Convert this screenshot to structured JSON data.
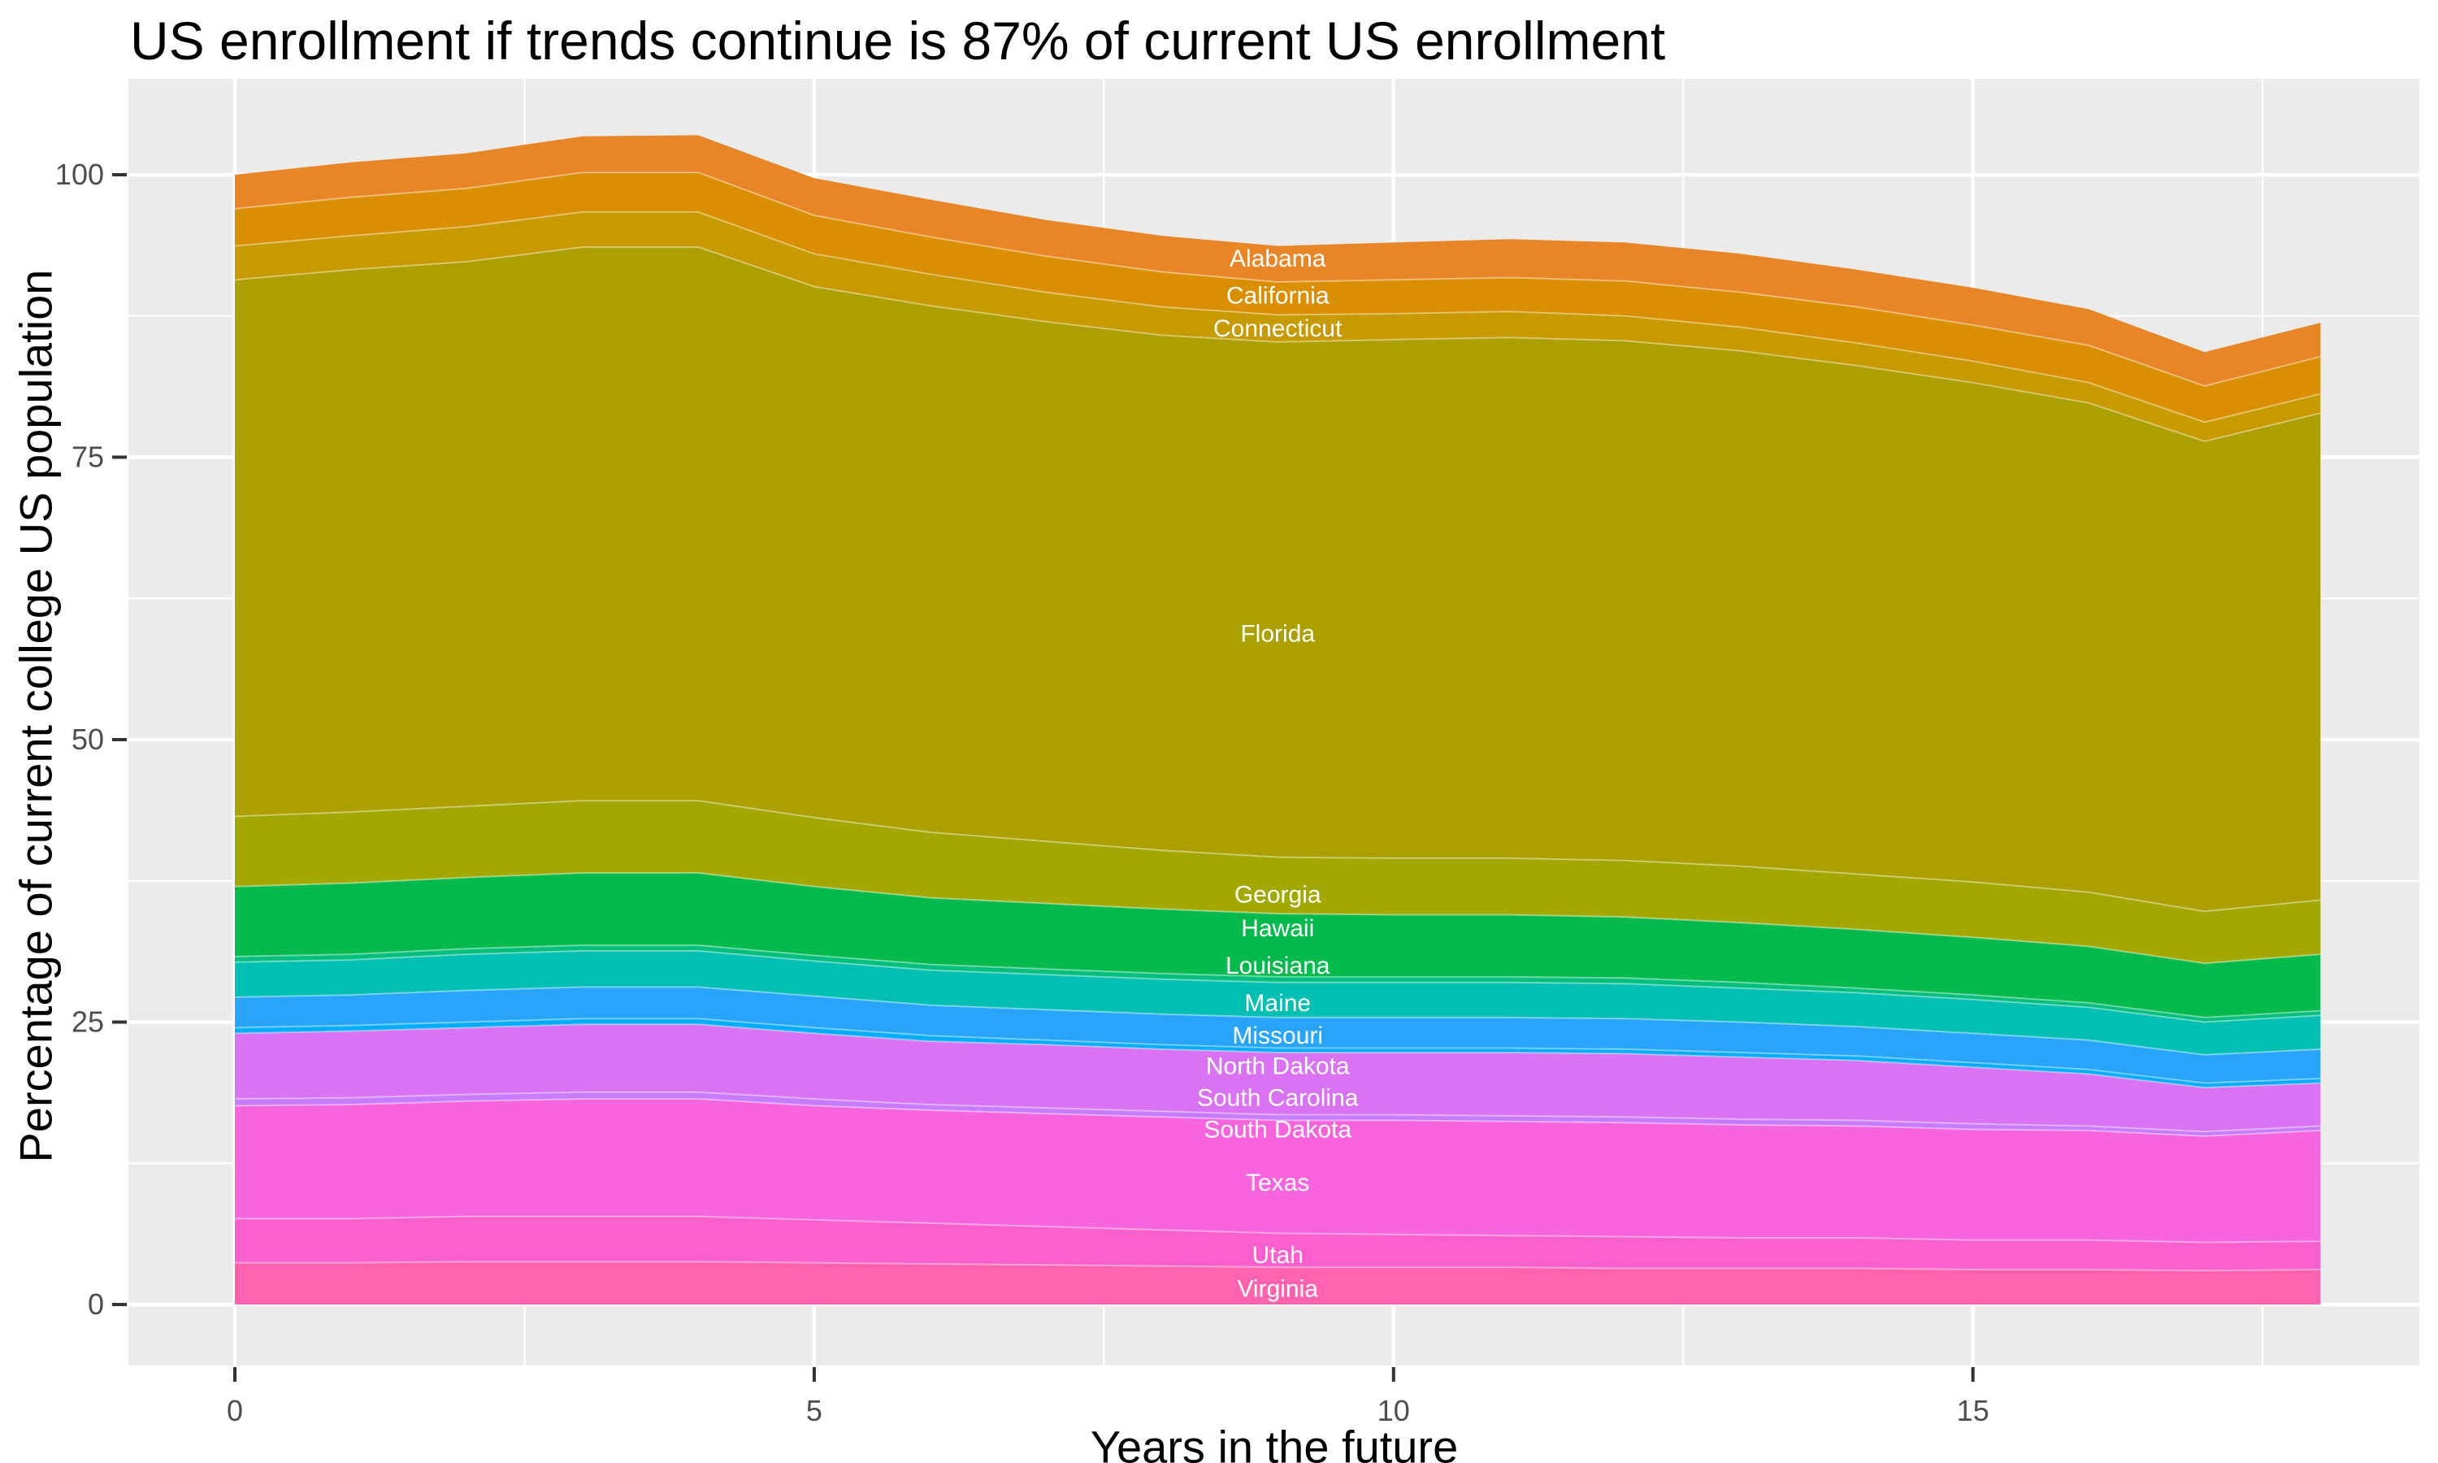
{
  "title": "US enrollment if trends continue is 87% of current US enrollment",
  "colors": {
    "panel_background": "#EBEBEB",
    "grid": "#FFFFFF",
    "tick_text": "#4D4D4D",
    "axis_text": "#000000",
    "tick_mark": "#333333",
    "state_label_text": "#FFFFFF"
  },
  "chart_data": {
    "type": "area",
    "stacked": true,
    "title": "US enrollment if trends continue is 87% of current US enrollment",
    "xlabel": "Years in the future",
    "ylabel": "Percentage of current college US population",
    "x": [
      0,
      1,
      2,
      3,
      4,
      5,
      6,
      7,
      8,
      9,
      10,
      11,
      12,
      13,
      14,
      15,
      16,
      17,
      18
    ],
    "x_ticks": [
      0,
      5,
      10,
      15
    ],
    "x_minor_ticks": [
      2.5,
      7.5,
      12.5,
      17.5
    ],
    "y_ticks": [
      0,
      25,
      50,
      75,
      100
    ],
    "y_minor_ticks": [
      12.5,
      37.5,
      62.5,
      87.5
    ],
    "xlim": [
      0,
      18
    ],
    "ylim": [
      0,
      103.5
    ],
    "grid": true,
    "legend_position": "none",
    "labels_x": 9,
    "end_total_pct": 87,
    "series": [
      {
        "name": "Alabama",
        "color": "#E88526",
        "label_y": 92.6,
        "values": [
          3.0,
          3.1,
          3.1,
          3.2,
          3.3,
          3.3,
          3.3,
          3.2,
          3.2,
          3.2,
          3.3,
          3.4,
          3.4,
          3.4,
          3.3,
          3.3,
          3.2,
          3.0,
          3.0
        ]
      },
      {
        "name": "California",
        "color": "#D98F00",
        "label_y": 89.3,
        "values": [
          3.3,
          3.4,
          3.4,
          3.5,
          3.5,
          3.4,
          3.3,
          3.2,
          3.1,
          2.9,
          3.0,
          3.0,
          3.1,
          3.1,
          3.2,
          3.2,
          3.3,
          3.2,
          3.3
        ]
      },
      {
        "name": "Connecticut",
        "color": "#C79A00",
        "label_y": 86.4,
        "values": [
          3.0,
          3.0,
          3.1,
          3.1,
          3.1,
          2.9,
          2.8,
          2.6,
          2.5,
          2.4,
          2.3,
          2.3,
          2.2,
          2.1,
          2.0,
          1.9,
          1.8,
          1.7,
          1.7
        ]
      },
      {
        "name": "Florida",
        "color": "#ACA000",
        "label_y": 59.4,
        "values": [
          47.5,
          48.0,
          48.2,
          49.0,
          49.0,
          47.0,
          46.6,
          46.0,
          45.6,
          45.6,
          45.9,
          46.1,
          46.0,
          45.6,
          45.0,
          44.2,
          43.3,
          41.6,
          43.1
        ]
      },
      {
        "name": "Georgia",
        "color": "#A2A800",
        "label_y": 36.3,
        "values": [
          6.2,
          6.3,
          6.3,
          6.4,
          6.4,
          6.1,
          5.8,
          5.5,
          5.2,
          5.0,
          5.0,
          5.0,
          5.0,
          5.0,
          4.9,
          4.9,
          4.8,
          4.6,
          4.8
        ]
      },
      {
        "name": "Hawaii",
        "color": "#04BA4C",
        "label_y": 33.3,
        "values": [
          6.2,
          6.3,
          6.3,
          6.4,
          6.4,
          6.1,
          5.9,
          5.8,
          5.7,
          5.6,
          5.5,
          5.5,
          5.4,
          5.3,
          5.2,
          5.1,
          5.0,
          4.8,
          5.0
        ]
      },
      {
        "name": "Louisiana",
        "color": "#00BF7D",
        "label_y": 30.0,
        "values": [
          0.5,
          0.5,
          0.5,
          0.5,
          0.5,
          0.5,
          0.5,
          0.5,
          0.5,
          0.5,
          0.5,
          0.5,
          0.5,
          0.5,
          0.4,
          0.4,
          0.4,
          0.4,
          0.4
        ]
      },
      {
        "name": "Maine",
        "color": "#01BFB3",
        "label_y": 26.7,
        "values": [
          3.1,
          3.1,
          3.2,
          3.2,
          3.2,
          3.1,
          3.1,
          3.1,
          3.1,
          3.1,
          3.1,
          3.1,
          3.1,
          3.0,
          3.0,
          3.0,
          2.9,
          2.9,
          3.0
        ]
      },
      {
        "name": "Missouri",
        "color": "#28A5FA",
        "label_y": 23.8,
        "values": [
          2.7,
          2.7,
          2.8,
          2.8,
          2.8,
          2.8,
          2.7,
          2.7,
          2.7,
          2.7,
          2.7,
          2.7,
          2.7,
          2.7,
          2.6,
          2.6,
          2.6,
          2.5,
          2.6
        ]
      },
      {
        "name": "North Dakota",
        "color": "#00ACFC",
        "label_y": 21.1,
        "values": [
          0.5,
          0.5,
          0.5,
          0.5,
          0.5,
          0.5,
          0.5,
          0.4,
          0.4,
          0.4,
          0.4,
          0.4,
          0.4,
          0.4,
          0.4,
          0.4,
          0.4,
          0.4,
          0.4
        ]
      },
      {
        "name": "South Carolina",
        "color": "#D973F3",
        "label_y": 18.3,
        "values": [
          5.8,
          5.9,
          5.9,
          6.0,
          6.0,
          5.8,
          5.6,
          5.6,
          5.5,
          5.5,
          5.5,
          5.6,
          5.6,
          5.5,
          5.3,
          5.0,
          4.6,
          3.9,
          3.8
        ]
      },
      {
        "name": "South Dakota",
        "color": "#C77CFF",
        "label_y": 15.5,
        "values": [
          0.6,
          0.6,
          0.6,
          0.6,
          0.6,
          0.6,
          0.5,
          0.5,
          0.5,
          0.5,
          0.5,
          0.5,
          0.5,
          0.5,
          0.5,
          0.5,
          0.4,
          0.4,
          0.4
        ]
      },
      {
        "name": "Texas",
        "color": "#F664DE",
        "label_y": 10.8,
        "values": [
          10.0,
          10.1,
          10.2,
          10.4,
          10.4,
          10.1,
          10.0,
          10.0,
          10.0,
          10.0,
          10.1,
          10.1,
          10.1,
          10.0,
          9.9,
          9.8,
          9.7,
          9.4,
          9.8
        ]
      },
      {
        "name": "Utah",
        "color": "#FA5FCE",
        "label_y": 4.4,
        "values": [
          3.9,
          3.9,
          4.0,
          4.0,
          4.0,
          3.8,
          3.6,
          3.4,
          3.2,
          3.0,
          2.9,
          2.8,
          2.8,
          2.7,
          2.7,
          2.6,
          2.6,
          2.5,
          2.5
        ]
      },
      {
        "name": "Virginia",
        "color": "#FF63B0",
        "label_y": 1.4,
        "values": [
          3.7,
          3.7,
          3.8,
          3.8,
          3.8,
          3.7,
          3.6,
          3.5,
          3.4,
          3.3,
          3.3,
          3.3,
          3.2,
          3.2,
          3.2,
          3.1,
          3.1,
          3.0,
          3.1
        ]
      }
    ]
  }
}
